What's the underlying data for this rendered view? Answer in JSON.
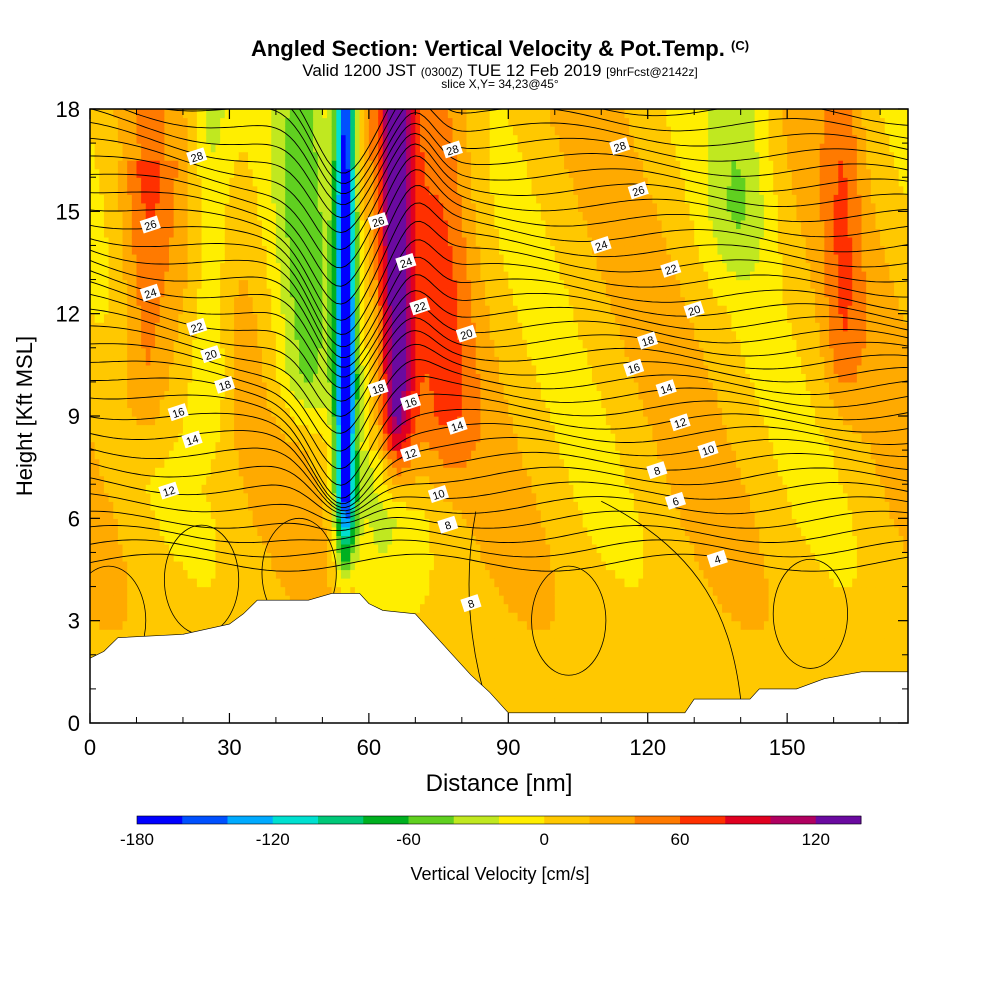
{
  "header": {
    "title": "Angled Section: Vertical Velocity & Pot.Temp.",
    "title_tag": "(C)",
    "valid_prefix": "Valid 1200 JST",
    "valid_utc": "(0300Z)",
    "valid_date": "TUE 12 Feb 2019",
    "forecast": "[9hrFcst@2142z]",
    "slice": "slice X,Y= 34,23@45°"
  },
  "chart_data": {
    "type": "heatmap",
    "xlabel": "Distance [nm]",
    "ylabel": "Height [Kft MSL]",
    "xlim": [
      0,
      176
    ],
    "ylim": [
      0,
      18
    ],
    "x_ticks": [
      0,
      30,
      60,
      90,
      120,
      150
    ],
    "y_ticks": [
      0,
      3,
      6,
      9,
      12,
      15,
      18
    ],
    "colorbar": {
      "label": "Vertical Velocity [cm/s]",
      "tick_labels": [
        "-180",
        "-120",
        "-60",
        "0",
        "60",
        "120"
      ],
      "tick_values": [
        -180,
        -120,
        -60,
        0,
        60,
        120
      ],
      "colors": [
        "#0000ff",
        "#0050ff",
        "#00aaff",
        "#00e0d0",
        "#00c878",
        "#00b020",
        "#60d020",
        "#c0e820",
        "#ffee00",
        "#ffc800",
        "#ffaa00",
        "#ff7a00",
        "#ff3000",
        "#e00020",
        "#b00060",
        "#6a0aa0"
      ],
      "range": [
        -180,
        140
      ]
    },
    "terrain_kft": [
      [
        0,
        1.9
      ],
      [
        3,
        2.1
      ],
      [
        6,
        2.5
      ],
      [
        20,
        2.6
      ],
      [
        30,
        2.9
      ],
      [
        33,
        3.2
      ],
      [
        36,
        3.6
      ],
      [
        47,
        3.6
      ],
      [
        52,
        3.8
      ],
      [
        58,
        3.8
      ],
      [
        60,
        3.5
      ],
      [
        63,
        3.3
      ],
      [
        70,
        3.2
      ],
      [
        74,
        2.6
      ],
      [
        78,
        2.0
      ],
      [
        82,
        1.4
      ],
      [
        86,
        0.9
      ],
      [
        90,
        0.3
      ],
      [
        128,
        0.3
      ],
      [
        130,
        0.7
      ],
      [
        142,
        0.7
      ],
      [
        144,
        1.0
      ],
      [
        152,
        1.0
      ],
      [
        158,
        1.3
      ],
      [
        166,
        1.5
      ],
      [
        176,
        1.5
      ]
    ],
    "updraft_core": {
      "center_x": 66,
      "max_cm_s": 120,
      "z_range": [
        6,
        18
      ]
    },
    "downdraft_core": {
      "center_x": 55,
      "min_cm_s": -180,
      "z_range": [
        4,
        18
      ]
    },
    "theta_contours": {
      "units": "C",
      "levels": [
        4,
        6,
        8,
        10,
        12,
        14,
        16,
        18,
        20,
        22,
        24,
        26,
        28
      ],
      "labels": [
        {
          "text": "28",
          "x": 23,
          "y": 16.6
        },
        {
          "text": "26",
          "x": 13,
          "y": 14.6
        },
        {
          "text": "24",
          "x": 13,
          "y": 12.6
        },
        {
          "text": "22",
          "x": 23,
          "y": 11.6
        },
        {
          "text": "20",
          "x": 26,
          "y": 10.8
        },
        {
          "text": "18",
          "x": 29,
          "y": 9.9
        },
        {
          "text": "16",
          "x": 19,
          "y": 9.1
        },
        {
          "text": "14",
          "x": 22,
          "y": 8.3
        },
        {
          "text": "12",
          "x": 17,
          "y": 6.8
        },
        {
          "text": "28",
          "x": 78,
          "y": 16.8
        },
        {
          "text": "26",
          "x": 62,
          "y": 14.7
        },
        {
          "text": "24",
          "x": 68,
          "y": 13.5
        },
        {
          "text": "22",
          "x": 71,
          "y": 12.2
        },
        {
          "text": "20",
          "x": 81,
          "y": 11.4
        },
        {
          "text": "18",
          "x": 62,
          "y": 9.8
        },
        {
          "text": "16",
          "x": 69,
          "y": 9.4
        },
        {
          "text": "14",
          "x": 79,
          "y": 8.7
        },
        {
          "text": "12",
          "x": 69,
          "y": 7.9
        },
        {
          "text": "10",
          "x": 75,
          "y": 6.7
        },
        {
          "text": "8",
          "x": 77,
          "y": 5.8
        },
        {
          "text": "8",
          "x": 82,
          "y": 3.5
        },
        {
          "text": "28",
          "x": 114,
          "y": 16.9
        },
        {
          "text": "26",
          "x": 118,
          "y": 15.6
        },
        {
          "text": "24",
          "x": 110,
          "y": 14.0
        },
        {
          "text": "22",
          "x": 125,
          "y": 13.3
        },
        {
          "text": "20",
          "x": 130,
          "y": 12.1
        },
        {
          "text": "18",
          "x": 120,
          "y": 11.2
        },
        {
          "text": "16",
          "x": 117,
          "y": 10.4
        },
        {
          "text": "14",
          "x": 124,
          "y": 9.8
        },
        {
          "text": "12",
          "x": 127,
          "y": 8.8
        },
        {
          "text": "10",
          "x": 133,
          "y": 8.0
        },
        {
          "text": "8",
          "x": 122,
          "y": 7.4
        },
        {
          "text": "6",
          "x": 126,
          "y": 6.5
        },
        {
          "text": "4",
          "x": 135,
          "y": 4.8
        }
      ]
    }
  }
}
